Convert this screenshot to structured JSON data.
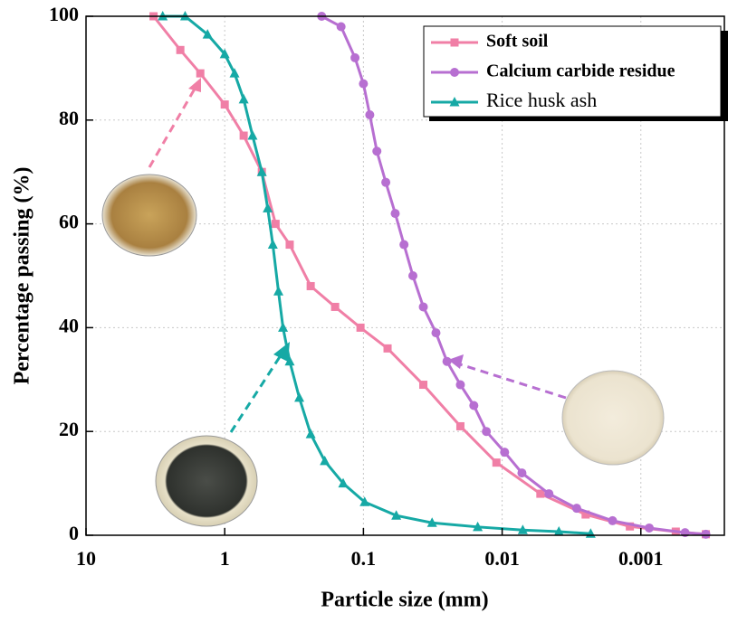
{
  "chart_data": {
    "type": "line",
    "xlabel": "Particle size (mm)",
    "ylabel": "Percentage passing (%)",
    "xscale": "log",
    "xlim": [
      10,
      0.00025
    ],
    "ylim": [
      0,
      100
    ],
    "xticks": [
      10,
      1,
      0.1,
      0.01,
      0.001
    ],
    "yticks": [
      0,
      20,
      40,
      60,
      80,
      100
    ],
    "grid": true,
    "legend": "upper right",
    "series": [
      {
        "name": "Soft soil",
        "color": "#f07fa6",
        "marker": "square",
        "x": [
          3.26,
          2.09,
          1.5,
          1,
          0.73,
          0.54,
          0.43,
          0.34,
          0.24,
          0.16,
          0.105,
          0.067,
          0.037,
          0.02,
          0.011,
          0.0053,
          0.0025,
          0.0012,
          0.00056,
          0.00034
        ],
        "values": [
          100,
          93.5,
          89,
          83,
          77,
          70,
          60,
          56,
          48,
          44,
          40,
          36,
          29,
          21,
          14,
          8,
          4,
          1.7,
          0.7,
          0.2
        ]
      },
      {
        "name": "Calcium carbide residue",
        "color": "#b76fd1",
        "marker": "circle",
        "x": [
          0.2,
          0.145,
          0.115,
          0.1,
          0.09,
          0.08,
          0.069,
          0.059,
          0.051,
          0.044,
          0.037,
          0.03,
          0.025,
          0.02,
          0.016,
          0.013,
          0.0096,
          0.0072,
          0.0046,
          0.0029,
          0.0016,
          0.00087,
          0.00048,
          0.00034
        ],
        "values": [
          100,
          98,
          92,
          87,
          81,
          74,
          68,
          62,
          56,
          50,
          44,
          39,
          33.5,
          29,
          25,
          20,
          16,
          12,
          8,
          5.2,
          2.8,
          1.4,
          0.5,
          0.2
        ]
      },
      {
        "name": "Rice husk ash",
        "color": "#16a9a5",
        "marker": "triangle",
        "x": [
          2.8,
          1.93,
          1.33,
          1,
          0.85,
          0.73,
          0.63,
          0.54,
          0.49,
          0.45,
          0.41,
          0.38,
          0.34,
          0.29,
          0.24,
          0.19,
          0.14,
          0.098,
          0.058,
          0.032,
          0.015,
          0.0071,
          0.0039,
          0.0023
        ],
        "values": [
          100,
          100,
          96.5,
          92.7,
          89,
          84,
          77,
          70,
          63,
          56,
          47,
          40,
          33.5,
          26.5,
          19.5,
          14.3,
          10,
          6.4,
          3.8,
          2.4,
          1.6,
          1,
          0.7,
          0.3
        ]
      }
    ]
  }
}
